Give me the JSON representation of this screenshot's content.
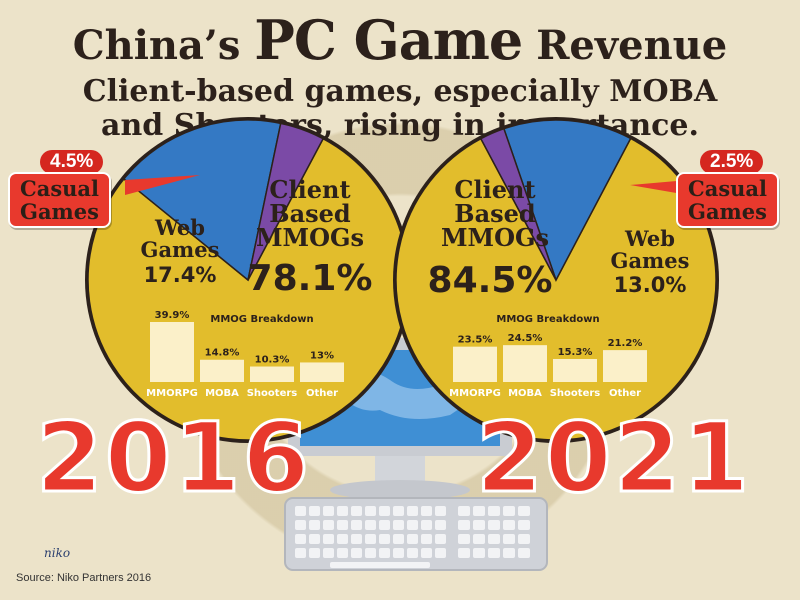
{
  "header": {
    "title_pre": "China’s ",
    "title_highlight": "PC Game",
    "title_post": " Revenue",
    "subtitle_line1": "Client-based games, especially MOBA",
    "subtitle_line2": "and Shooters, rising in importance."
  },
  "colors": {
    "client_mmog": "#e2bd2c",
    "web_games": "#3479c4",
    "casual_games": "#7b4aa6",
    "bar": "#fbf0c9",
    "year_text": "#e8392d",
    "dark_text": "#2c211b"
  },
  "chart_data": [
    {
      "type": "pie",
      "year": "2016",
      "slices": [
        {
          "label": "Client Based MMOGs",
          "value": 78.1,
          "display": "78.1%"
        },
        {
          "label": "Web Games",
          "value": 17.4,
          "display": "17.4%"
        },
        {
          "label": "Casual Games",
          "value": 4.5,
          "display": "4.5%"
        }
      ],
      "breakdown": {
        "title": "MMOG Breakdown",
        "type": "bar",
        "categories": [
          "MMORPG",
          "MOBA",
          "Shooters",
          "Other"
        ],
        "values": [
          39.9,
          14.8,
          10.3,
          13.0
        ],
        "labels": [
          "39.9%",
          "14.8%",
          "10.3%",
          "13%"
        ]
      }
    },
    {
      "type": "pie",
      "year": "2021",
      "slices": [
        {
          "label": "Client Based MMOGs",
          "value": 84.5,
          "display": "84.5%"
        },
        {
          "label": "Web Games",
          "value": 13.0,
          "display": "13.0%"
        },
        {
          "label": "Casual Games",
          "value": 2.5,
          "display": "2.5%"
        }
      ],
      "breakdown": {
        "title": "MMOG Breakdown",
        "type": "bar",
        "categories": [
          "MMORPG",
          "MOBA",
          "Shooters",
          "Other"
        ],
        "values": [
          23.5,
          24.5,
          15.3,
          21.2
        ],
        "labels": [
          "23.5%",
          "24.5%",
          "15.3%",
          "21.2%"
        ]
      }
    }
  ],
  "labels": {
    "client_line1": "Client",
    "client_line2": "Based",
    "client_line3": "MMOGs",
    "web_line1": "Web",
    "web_line2": "Games",
    "casual_line1": "Casual",
    "casual_line2": "Games"
  },
  "footer": {
    "logo": "niko",
    "source": "Source: Niko Partners 2016"
  }
}
